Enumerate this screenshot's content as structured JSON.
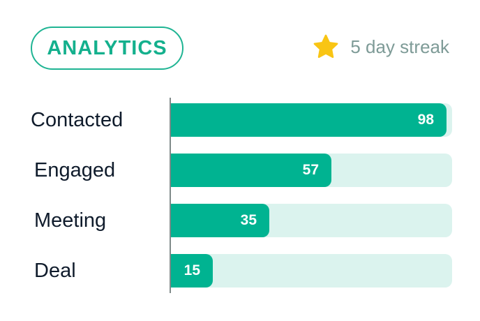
{
  "header": {
    "badge_label": "ANALYTICS",
    "streak_text": "5 day streak",
    "streak_icon": "star-icon"
  },
  "colors": {
    "accent": "#00b391",
    "track": "#dbf3ee",
    "star": "#f9c514"
  },
  "chart_data": {
    "type": "bar",
    "orientation": "horizontal",
    "title": "",
    "categories": [
      "Contacted",
      "Engaged",
      "Meeting",
      "Deal"
    ],
    "values": [
      98,
      57,
      35,
      15
    ],
    "xlim": [
      0,
      100
    ],
    "grid": false,
    "value_labels": true
  }
}
